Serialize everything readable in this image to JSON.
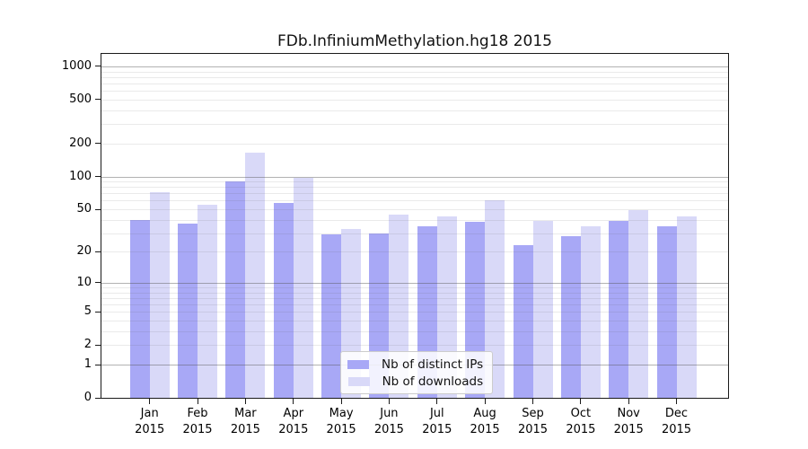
{
  "chart_data": {
    "type": "bar",
    "title": "FDb.InfiniumMethylation.hg18 2015",
    "categories": [
      "Jan 2015",
      "Feb 2015",
      "Mar 2015",
      "Apr 2015",
      "May 2015",
      "Jun 2015",
      "Jul 2015",
      "Aug 2015",
      "Sep 2015",
      "Oct 2015",
      "Nov 2015",
      "Dec 2015"
    ],
    "series": [
      {
        "name": "Nb of distinct IPs",
        "color": "#a8a8f6",
        "values": [
          40,
          37,
          90,
          57,
          29,
          30,
          35,
          38,
          23,
          28,
          39,
          35
        ]
      },
      {
        "name": "Nb of downloads",
        "color": "#d9d9f8",
        "values": [
          72,
          55,
          165,
          98,
          33,
          45,
          43,
          60,
          39,
          35,
          49,
          43
        ]
      }
    ],
    "xlabel": "",
    "ylabel": "",
    "yscale": "log1p",
    "yticks": [
      0,
      1,
      2,
      5,
      10,
      20,
      50,
      100,
      200,
      500,
      1000
    ],
    "ylim": [
      0,
      1300
    ],
    "grid": true,
    "legend_position": "lower-center-inside"
  }
}
